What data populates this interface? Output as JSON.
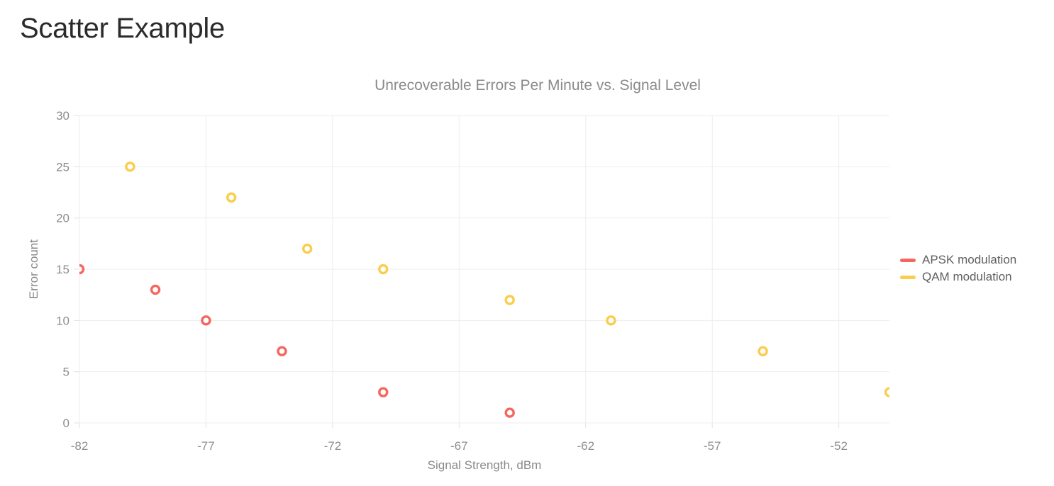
{
  "page": {
    "title": "Scatter Example"
  },
  "chart_data": {
    "type": "scatter",
    "title": "Unrecoverable Errors Per Minute vs. Signal Level",
    "xlabel": "Signal Strength, dBm",
    "ylabel": "Error count",
    "xlim": [
      -82,
      -50
    ],
    "ylim": [
      0,
      30
    ],
    "x_ticks": [
      -82,
      -77,
      -72,
      -67,
      -62,
      -57,
      -52
    ],
    "y_ticks": [
      0,
      5,
      10,
      15,
      20,
      25,
      30
    ],
    "grid": true,
    "legend_position": "right",
    "marker_style": "open-circle",
    "series": [
      {
        "name": "APSK modulation",
        "color": "#f4665e",
        "points": [
          [
            -82,
            15
          ],
          [
            -79,
            13
          ],
          [
            -77,
            10
          ],
          [
            -74,
            7
          ],
          [
            -70,
            3
          ],
          [
            -65,
            1
          ]
        ]
      },
      {
        "name": "QAM modulation",
        "color": "#fbcd4c",
        "points": [
          [
            -80,
            25
          ],
          [
            -76,
            22
          ],
          [
            -73,
            17
          ],
          [
            -70,
            15
          ],
          [
            -65,
            12
          ],
          [
            -61,
            10
          ],
          [
            -55,
            7
          ],
          [
            -50,
            3
          ]
        ]
      }
    ]
  }
}
